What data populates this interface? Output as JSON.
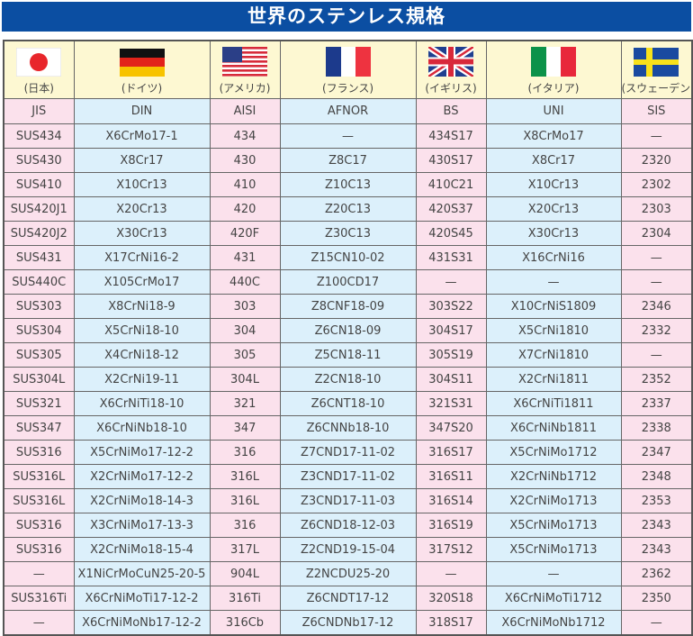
{
  "title": "世界のステンレス規格",
  "colors": {
    "title_bg": "#0b4ea2",
    "flag_row_bg": "#fdf8d2",
    "pink": "#fbe1ec",
    "blue": "#dcf0fb"
  },
  "countries": [
    {
      "flag": "japan-flag",
      "name": "(日本)",
      "standard": "JIS"
    },
    {
      "flag": "germany-flag",
      "name": "(ドイツ)",
      "standard": "DIN"
    },
    {
      "flag": "usa-flag",
      "name": "(アメリカ)",
      "standard": "AISI"
    },
    {
      "flag": "france-flag",
      "name": "(フランス)",
      "standard": "AFNOR"
    },
    {
      "flag": "uk-flag",
      "name": "(イギリス)",
      "standard": "BS"
    },
    {
      "flag": "italy-flag",
      "name": "(イタリア)",
      "standard": "UNI"
    },
    {
      "flag": "sweden-flag",
      "name": "(スウェーデン)",
      "standard": "SIS"
    }
  ],
  "rows": [
    [
      "SUS434",
      "X6CrMo17-1",
      "434",
      "—",
      "434S17",
      "X8CrMo17",
      "—"
    ],
    [
      "SUS430",
      "X8Cr17",
      "430",
      "Z8C17",
      "430S17",
      "X8Cr17",
      "2320"
    ],
    [
      "SUS410",
      "X10Cr13",
      "410",
      "Z10C13",
      "410C21",
      "X10Cr13",
      "2302"
    ],
    [
      "SUS420J1",
      "X20Cr13",
      "420",
      "Z20C13",
      "420S37",
      "X20Cr13",
      "2303"
    ],
    [
      "SUS420J2",
      "X30Cr13",
      "420F",
      "Z30C13",
      "420S45",
      "X30Cr13",
      "2304"
    ],
    [
      "SUS431",
      "X17CrNi16-2",
      "431",
      "Z15CN10-02",
      "431S31",
      "X16CrNi16",
      "—"
    ],
    [
      "SUS440C",
      "X105CrMo17",
      "440C",
      "Z100CD17",
      "—",
      "—",
      "—"
    ],
    [
      "SUS303",
      "X8CrNi18-9",
      "303",
      "Z8CNF18-09",
      "303S22",
      "X10CrNiS1809",
      "2346"
    ],
    [
      "SUS304",
      "X5CrNi18-10",
      "304",
      "Z6CN18-09",
      "304S17",
      "X5CrNi1810",
      "2332"
    ],
    [
      "SUS305",
      "X4CrNi18-12",
      "305",
      "Z5CN18-11",
      "305S19",
      "X7CrNi1810",
      "—"
    ],
    [
      "SUS304L",
      "X2CrNi19-11",
      "304L",
      "Z2CN18-10",
      "304S11",
      "X2CrNi1811",
      "2352"
    ],
    [
      "SUS321",
      "X6CrNiTi18-10",
      "321",
      "Z6CNT18-10",
      "321S31",
      "X6CrNiTi1811",
      "2337"
    ],
    [
      "SUS347",
      "X6CrNiNb18-10",
      "347",
      "Z6CNNb18-10",
      "347S20",
      "X6CrNiNb1811",
      "2338"
    ],
    [
      "SUS316",
      "X5CrNiMo17-12-2",
      "316",
      "Z7CND17-11-02",
      "316S17",
      "X5CrNiMo1712",
      "2347"
    ],
    [
      "SUS316L",
      "X2CrNiMo17-12-2",
      "316L",
      "Z3CND17-11-02",
      "316S11",
      "X2CrNiNb1712",
      "2348"
    ],
    [
      "SUS316L",
      "X2CrNiMo18-14-3",
      "316L",
      "Z3CND17-11-03",
      "316S14",
      "X2CrNiMo1713",
      "2353"
    ],
    [
      "SUS316",
      "X3CrNiMo17-13-3",
      "316",
      "Z6CND18-12-03",
      "316S19",
      "X5CrNiMo1713",
      "2343"
    ],
    [
      "SUS316",
      "X2CrNiMo18-15-4",
      "317L",
      "Z2CND19-15-04",
      "317S12",
      "X5CrNiMo1713",
      "2343"
    ],
    [
      "—",
      "X1NiCrMoCuN25-20-5",
      "904L",
      "Z2NCDU25-20",
      "—",
      "—",
      "2362"
    ],
    [
      "SUS316Ti",
      "X6CrNiMoTi17-12-2",
      "316Ti",
      "Z6CNDT17-12",
      "320S18",
      "X6CrNiMoTi1712",
      "2350"
    ],
    [
      "—",
      "X6CrNiMoNb17-12-2",
      "316Cb",
      "Z6CNDNb17-12",
      "318S17",
      "X6CrNiMoNb1712",
      "—"
    ]
  ]
}
